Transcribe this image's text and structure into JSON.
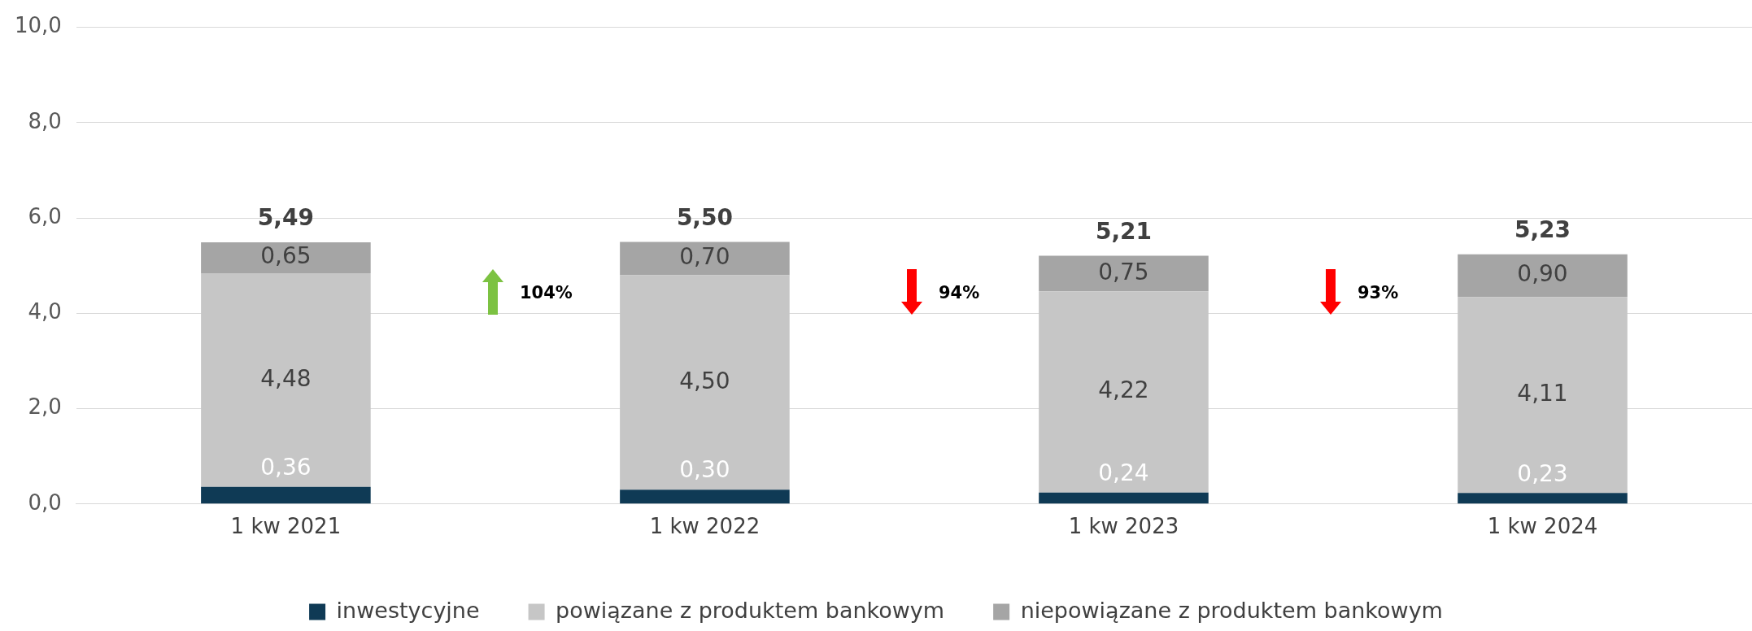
{
  "chart_data": {
    "type": "bar",
    "stacked": true,
    "categories": [
      "1 kw 2021",
      "1 kw 2022",
      "1 kw 2023",
      "1 kw 2024"
    ],
    "series": [
      {
        "name": "inwestycyjne",
        "color": "#0f3a55",
        "values": [
          0.36,
          0.3,
          0.24,
          0.23
        ],
        "value_labels": [
          "0,36",
          "0,30",
          "0,24",
          "0,23"
        ]
      },
      {
        "name": "powiązane z produktem bankowym",
        "color": "#c6c6c6",
        "values": [
          4.48,
          4.5,
          4.22,
          4.11
        ],
        "value_labels": [
          "4,48",
          "4,50",
          "4,22",
          "4,11"
        ]
      },
      {
        "name": "niepowiązane z produktem bankowym",
        "color": "#a5a5a5",
        "values": [
          0.65,
          0.7,
          0.75,
          0.9
        ],
        "value_labels": [
          "0,65",
          "0,70",
          "0,75",
          "0,90"
        ]
      }
    ],
    "totals": [
      "5,49",
      "5,50",
      "5,21",
      "5,23"
    ],
    "annotations": [
      "104%",
      "94%",
      "93%"
    ],
    "ylim": [
      0,
      10
    ],
    "yticks": [
      {
        "value": 0,
        "label": "0,0"
      },
      {
        "value": 2,
        "label": "2,0"
      },
      {
        "value": 4,
        "label": "4,0"
      },
      {
        "value": 6,
        "label": "6,0"
      },
      {
        "value": 8,
        "label": "8,0"
      },
      {
        "value": 10,
        "label": "10,0"
      }
    ],
    "grid": "y",
    "legend": "bottom"
  }
}
